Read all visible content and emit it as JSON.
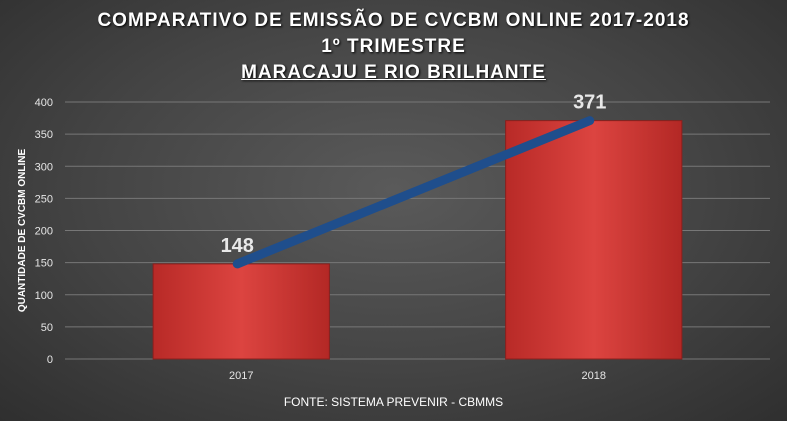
{
  "chart_data": {
    "type": "bar",
    "title_lines": [
      "COMPARATIVO DE EMISSÃO DE CVCBM ONLINE 2017-2018",
      "1º TRIMESTRE",
      "MARACAJU E RIO BRILHANTE"
    ],
    "ylabel": "QUANTIDADE DE CVCBM ONLINE",
    "categories": [
      "2017",
      "2018"
    ],
    "values": [
      148,
      371
    ],
    "data_labels": [
      "148",
      "371"
    ],
    "ylim": [
      0,
      400
    ],
    "yticks": [
      0,
      50,
      100,
      150,
      200,
      250,
      300,
      350,
      400
    ],
    "ytick_labels": [
      "0",
      "50",
      "100",
      "150",
      "200",
      "250",
      "300",
      "350",
      "400"
    ],
    "overlay_line": {
      "type": "line",
      "values": [
        148,
        371
      ],
      "color": "#1f4e8c"
    },
    "bar_color": "#d43a36",
    "grid": true,
    "legend": "none",
    "source": "FONTE: SISTEMA PREVENIR - CBMMS"
  }
}
